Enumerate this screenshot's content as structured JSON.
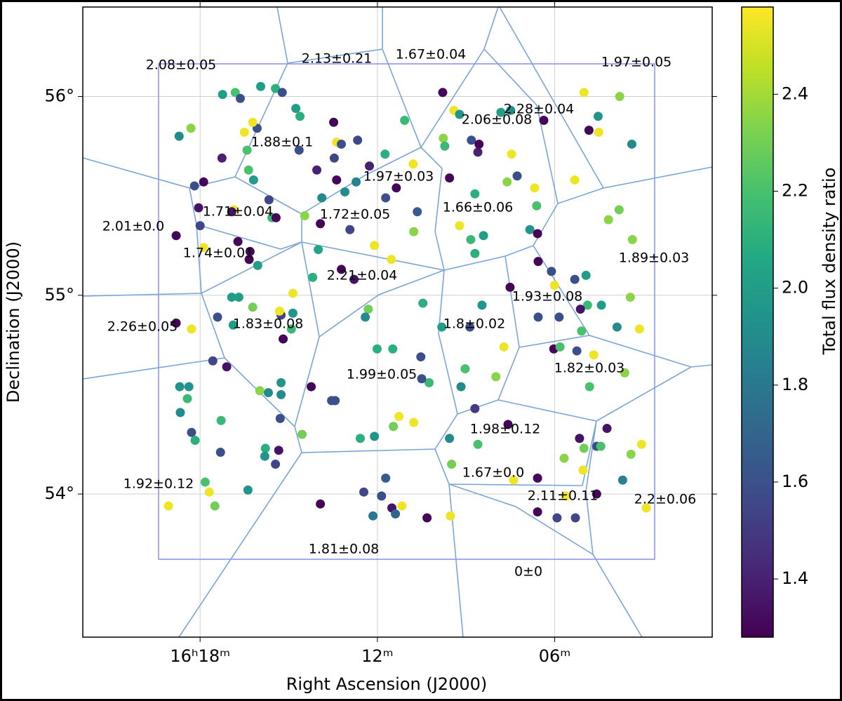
{
  "chart_data": {
    "type": "scatter",
    "xlabel": "Right Ascension (J2000)",
    "ylabel": "Declination (J2000)",
    "xlim": [
      21.97,
      0.67
    ],
    "ylim": [
      53.28,
      56.45
    ],
    "xticks": [
      {
        "value": 18,
        "label": "16ʰ18ᵐ"
      },
      {
        "value": 12,
        "label": "12ᵐ"
      },
      {
        "value": 6,
        "label": "06ᵐ"
      }
    ],
    "yticks": [
      {
        "value": 54,
        "label": "54°"
      },
      {
        "value": 55,
        "label": "55°"
      },
      {
        "value": 56,
        "label": "56°"
      }
    ],
    "grid": true,
    "colormap": "viridis",
    "colorbar": {
      "label": "Total flux density ratio",
      "clim": [
        1.28,
        2.58
      ],
      "ticks": [
        1.4,
        1.6,
        1.8,
        {
          "value": 2,
          "label": "2.0"
        },
        2.2,
        2.4
      ]
    },
    "x": [
      18.71,
      18.31,
      17.24,
      16.81,
      16.64,
      15.95,
      15.45,
      15.22,
      16.07,
      16.22,
      16.5,
      16.41,
      17.26,
      18.19,
      17.88,
      18.05,
      18.0,
      18.81,
      16.86,
      16.93,
      16.72,
      16.31,
      16.34,
      16.05,
      17.88,
      15.57,
      15.43,
      15.67,
      16.36,
      16.19,
      14.76,
      14.62,
      14.65,
      14.46,
      14.05,
      13.93,
      13.48,
      13.38,
      13.22,
      13.46,
      13.1,
      13.38,
      12.93,
      12.72,
      12.67,
      13.88,
      14.0,
      14.19,
      13.22,
      12.79,
      12.27,
      11.74,
      12.1,
      11.36,
      11.72,
      10.79,
      11.08,
      10.65,
      10.77,
      11.53,
      9.79,
      9.41,
      9.77,
      9.72,
      9.22,
      8.82,
      8.6,
      8.56,
      9.56,
      8.7,
      9.22,
      8.84,
      8.41,
      8.7,
      7.49,
      7.82,
      6.37,
      7.46,
      7.27,
      7.61,
      6.68,
      6.61,
      6.84,
      6.58,
      5.01,
      3.8,
      4.84,
      4.51,
      4.53,
      3.39,
      5.32,
      3.82,
      4.18,
      3.37,
      6.56,
      6.11,
      5.32,
      4.94,
      7.51,
      6.01,
      4.42,
      3.44,
      4.89,
      5.13,
      6.56,
      5.85,
      5.09,
      3.89,
      3.13,
      7.72,
      6.03,
      5.82,
      5.25,
      4.68,
      3.63,
      4.82,
      7.99,
      9.03,
      9.17,
      8.46,
      8.87,
      9.82,
      10.46,
      8.7,
      12.31,
      12.41,
      12.01,
      11.48,
      10.53,
      10.25,
      10.5,
      14.24,
      13.55,
      13.43,
      15.26,
      14.86,
      15.19,
      14.91,
      15.31,
      14.86,
      16.93,
      16.69,
      16.22,
      16.88,
      17.41,
      18.81,
      18.29,
      17.57,
      17.1,
      18.69,
      18.38,
      18.43,
      18.67,
      18.29,
      18.17,
      17.29,
      17.31,
      15.98,
      15.69,
      15.26,
      15.26,
      15.29,
      15.79,
      15.81,
      15.34,
      15.45,
      14.55,
      17.83,
      17.69,
      17.5,
      16.38,
      19.07,
      13.93,
      12.58,
      12.1,
      11.46,
      11.27,
      10.77,
      12.46,
      11.86,
      11.72,
      11.51,
      12.15,
      11.17,
      11.39,
      10.32,
      9.53,
      9.56,
      8.6,
      9.49,
      7.58,
      7.39,
      6.58,
      5.68,
      5.16,
      5.01,
      5.04,
      4.58,
      4.44,
      4.23,
      3.42,
      3.06,
      3.7,
      4.58,
      5.63,
      6.58,
      5.92,
      5.3,
      2.9
    ],
    "y": [
      55.8,
      55.84,
      56.01,
      56.02,
      55.99,
      56.05,
      56.04,
      56.02,
      55.84,
      55.87,
      55.82,
      55.73,
      55.69,
      55.55,
      55.57,
      55.44,
      55.35,
      55.3,
      55.43,
      55.42,
      55.27,
      55.22,
      55.18,
      55.15,
      55.24,
      55.39,
      55.39,
      55.48,
      55.63,
      55.58,
      55.94,
      55.9,
      55.73,
      55.4,
      55.63,
      55.36,
      55.87,
      55.77,
      55.76,
      55.69,
      55.52,
      55.58,
      55.33,
      55.57,
      55.78,
      55.49,
      55.23,
      55.09,
      55.13,
      55.08,
      55.65,
      55.71,
      55.25,
      55.54,
      55.49,
      55.66,
      55.88,
      55.42,
      55.32,
      55.18,
      56.02,
      55.93,
      55.79,
      55.75,
      55.91,
      55.78,
      55.72,
      55.76,
      55.59,
      55.51,
      55.35,
      55.28,
      55.3,
      55.21,
      55.93,
      55.92,
      55.88,
      55.71,
      55.6,
      55.57,
      55.54,
      55.45,
      55.33,
      55.31,
      56.02,
      56.0,
      55.83,
      55.82,
      55.9,
      55.76,
      55.58,
      55.43,
      55.38,
      55.28,
      55.17,
      55.12,
      55.08,
      55.1,
      55.04,
      55.05,
      54.95,
      54.99,
      54.95,
      54.93,
      54.89,
      54.89,
      54.82,
      54.84,
      54.83,
      54.74,
      54.73,
      54.74,
      54.72,
      54.7,
      54.61,
      54.54,
      54.59,
      54.63,
      54.54,
      54.95,
      54.84,
      54.84,
      54.96,
      54.43,
      54.93,
      54.89,
      54.73,
      54.73,
      54.69,
      54.56,
      54.58,
      54.54,
      54.47,
      54.47,
      54.9,
      54.91,
      54.78,
      54.83,
      54.92,
      55.01,
      54.99,
      54.99,
      54.94,
      54.85,
      54.89,
      54.86,
      54.83,
      54.67,
      54.64,
      54.54,
      54.54,
      54.48,
      54.41,
      54.31,
      54.27,
      54.37,
      54.21,
      54.52,
      54.51,
      54.56,
      54.5,
      54.38,
      54.23,
      54.19,
      54.22,
      54.15,
      54.3,
      54.06,
      54.01,
      53.94,
      54.02,
      53.94,
      53.95,
      54.28,
      54.29,
      54.34,
      54.39,
      54.36,
      54.01,
      53.99,
      54.08,
      53.93,
      53.89,
      53.94,
      53.9,
      53.88,
      53.89,
      54.28,
      54.25,
      54.15,
      54.35,
      54.07,
      54.08,
      54.18,
      54.28,
      54.23,
      54.12,
      54.24,
      54.24,
      54.33,
      54.2,
      54.25,
      54.07,
      54.0,
      53.99,
      53.91,
      53.88,
      53.88,
      53.93
    ],
    "values": [
      1.9,
      2.35,
      2.0,
      2.2,
      1.6,
      2.0,
      2.1,
      1.6,
      1.6,
      2.55,
      2.55,
      2.2,
      1.4,
      1.6,
      1.3,
      1.35,
      1.55,
      1.3,
      2.55,
      1.35,
      1.3,
      1.3,
      1.3,
      2.0,
      2.55,
      2.15,
      1.3,
      1.55,
      2.2,
      2.0,
      2.0,
      2.1,
      1.6,
      2.35,
      1.4,
      1.3,
      1.3,
      2.55,
      1.6,
      1.55,
      1.9,
      1.3,
      1.55,
      1.85,
      1.55,
      1.9,
      2.05,
      2.1,
      1.3,
      1.35,
      1.4,
      2.1,
      2.55,
      1.3,
      1.6,
      2.55,
      2.15,
      1.65,
      2.35,
      2.55,
      1.3,
      2.55,
      2.35,
      2.15,
      1.95,
      1.6,
      1.4,
      1.3,
      1.3,
      2.1,
      2.55,
      2.15,
      2.0,
      2.1,
      1.9,
      2.0,
      1.3,
      2.55,
      1.6,
      2.35,
      2.55,
      2.2,
      1.95,
      1.3,
      2.55,
      2.35,
      1.3,
      2.55,
      1.95,
      1.9,
      2.55,
      2.3,
      2.35,
      2.35,
      1.3,
      1.6,
      1.6,
      2.0,
      1.3,
      2.55,
      2.0,
      2.35,
      2.15,
      1.35,
      1.6,
      1.6,
      2.2,
      1.9,
      2.55,
      2.55,
      1.3,
      2.2,
      1.6,
      2.55,
      2.35,
      2.2,
      2.35,
      2.2,
      1.9,
      1.95,
      1.6,
      2.0,
      2.1,
      1.5,
      2.3,
      1.9,
      2.1,
      2.1,
      1.6,
      2.15,
      1.6,
      1.3,
      1.6,
      1.6,
      1.55,
      1.95,
      1.3,
      2.15,
      2.55,
      2.55,
      2.0,
      2.0,
      2.3,
      2.0,
      1.6,
      1.3,
      2.55,
      1.55,
      1.35,
      1.95,
      1.95,
      2.15,
      1.9,
      1.6,
      2.1,
      2.15,
      1.6,
      2.35,
      1.9,
      1.95,
      1.9,
      1.6,
      2.1,
      1.95,
      1.35,
      1.55,
      2.3,
      2.2,
      2.55,
      2.3,
      1.95,
      2.55,
      1.3,
      2.1,
      1.95,
      2.3,
      2.55,
      2.55,
      1.55,
      1.6,
      1.65,
      1.35,
      1.8,
      2.55,
      1.7,
      1.3,
      2.55,
      1.9,
      2.2,
      2.3,
      1.3,
      2.55,
      1.3,
      2.35,
      1.35,
      2.3,
      2.55,
      1.6,
      2.2,
      1.35,
      2.35,
      2.55,
      1.85,
      1.3,
      2.55,
      1.3,
      1.55,
      1.55,
      2.55
    ],
    "annotations": [
      "2.08±0.05",
      "2.13±0.21",
      "1.67±0.04",
      "1.97±0.05",
      "2.28±0.04",
      "2.06±0.08",
      "1.88±0.1",
      "1.97±0.03",
      "1.66±0.06",
      "1.71±0.04",
      "1.72±0.05",
      "2.01±0.0",
      "1.74±0.01",
      "1.89±0.03",
      "2.21±0.04",
      "1.93±0.08",
      "1.83±0.08",
      "2.26±0.05",
      "1.8±0.02",
      "1.82±0.03",
      "1.99±0.05",
      "1.98±0.12",
      "1.67±0.0",
      "1.92±0.12",
      "2.11±0.11",
      "2.2±0.06",
      "1.81±0.08",
      "0±0"
    ]
  }
}
